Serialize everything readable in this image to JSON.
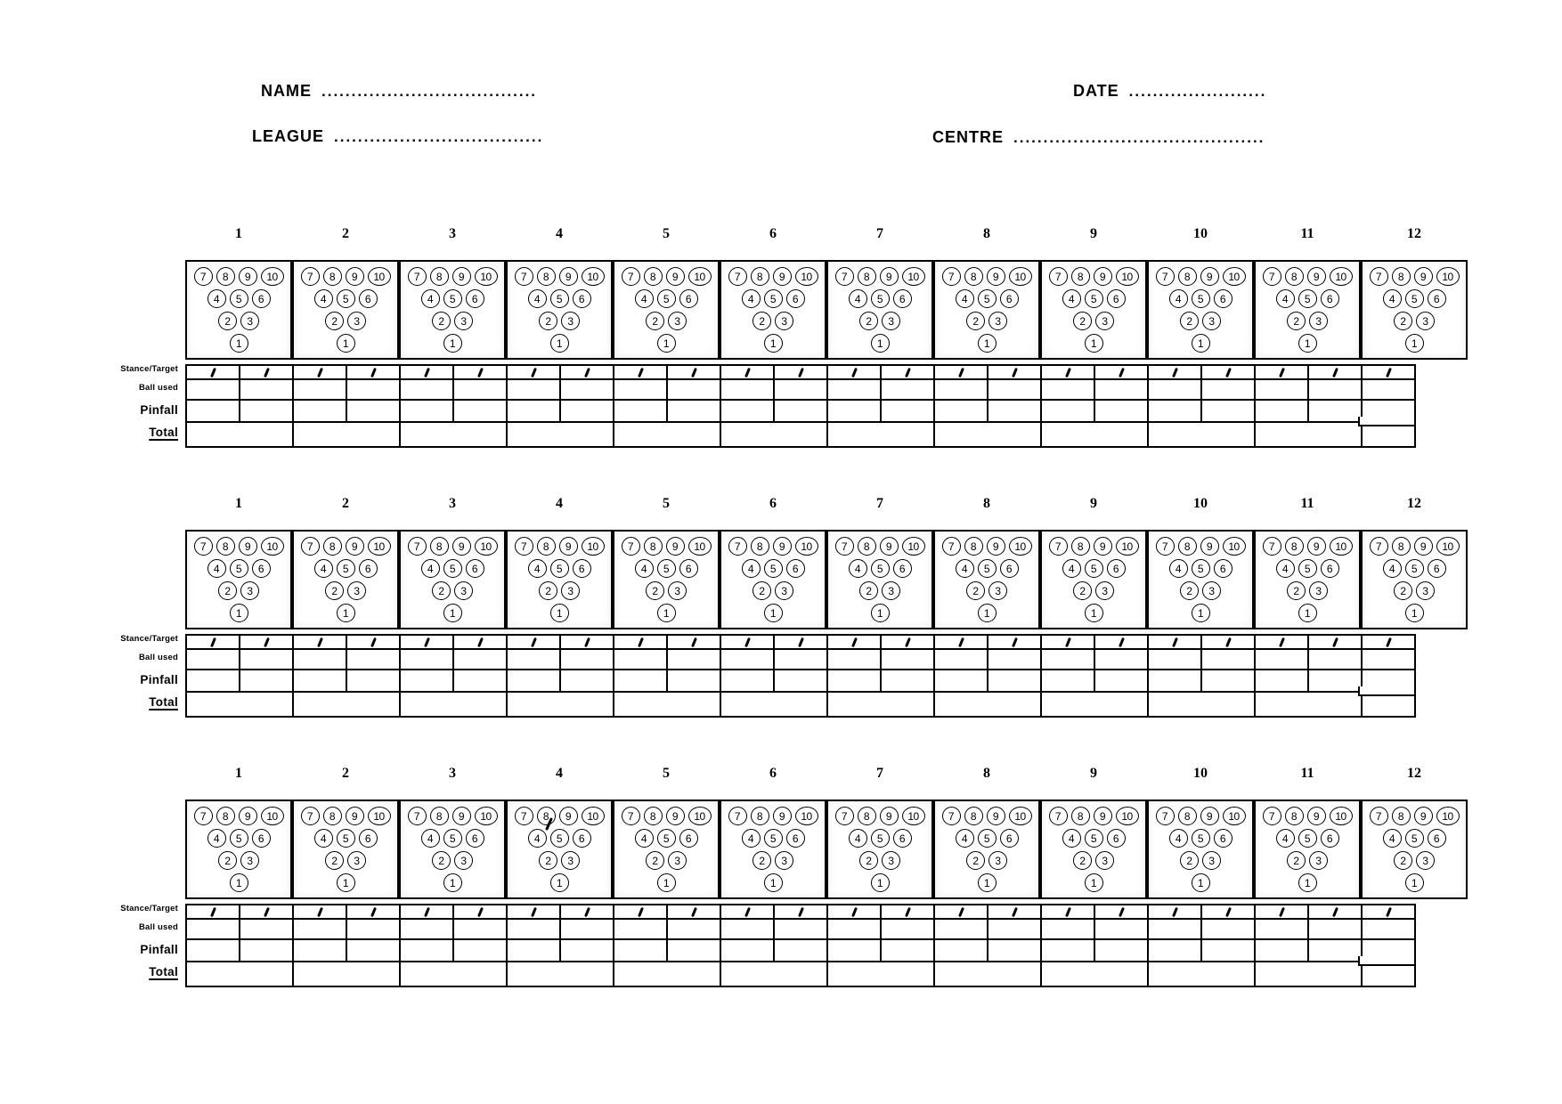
{
  "page": {
    "background": "#ffffff",
    "ink": "#000000"
  },
  "header": {
    "fields": [
      {
        "id": "name",
        "label": "NAME",
        "dots": "...................................."
      },
      {
        "id": "league",
        "label": "LEAGUE",
        "dots": "..................................."
      },
      {
        "id": "date",
        "label": "DATE",
        "dots": "......................."
      },
      {
        "id": "centre",
        "label": "CENTRE",
        "dots": ".........................................."
      }
    ]
  },
  "frames": {
    "numbers": [
      "1",
      "2",
      "3",
      "4",
      "5",
      "6",
      "7",
      "8",
      "9",
      "10",
      "11",
      "12"
    ]
  },
  "pin_diagram": {
    "rows": [
      [
        "7",
        "8",
        "9",
        "10"
      ],
      [
        "4",
        "5",
        "6"
      ],
      [
        "2",
        "3"
      ],
      [
        "1"
      ]
    ]
  },
  "score_rows": {
    "stance_label": "Stance/Target",
    "ball_label": "Ball used",
    "pinfall_label": "Pinfall",
    "total_label": "Total",
    "stance_mark_icon": "slash"
  },
  "blocks": [
    {
      "name": "game-1"
    },
    {
      "name": "game-2"
    },
    {
      "name": "game-3",
      "stray_mark": {
        "frame": "4",
        "description": "stray slash over pin 8"
      }
    }
  ]
}
